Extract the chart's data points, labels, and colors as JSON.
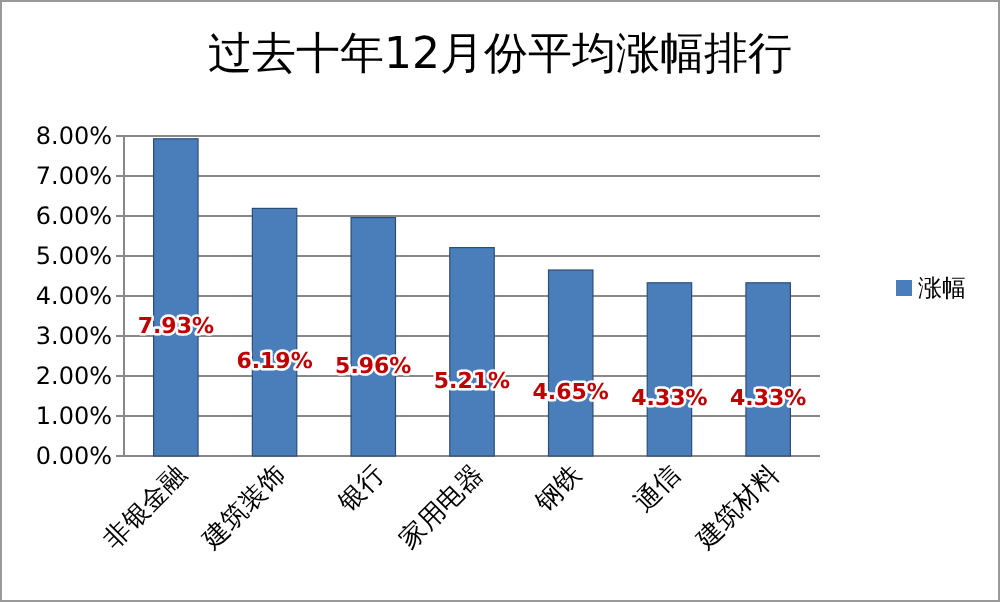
{
  "chart_data": {
    "type": "bar",
    "title": "过去十年12月份平均涨幅排行",
    "categories": [
      "非银金融",
      "建筑装饰",
      "银行",
      "家用电器",
      "钢铁",
      "通信",
      "建筑材料"
    ],
    "series": [
      {
        "name": "涨幅",
        "color": "#4a7ebb",
        "values": [
          7.93,
          6.19,
          5.96,
          5.21,
          4.65,
          4.33,
          4.33
        ],
        "value_labels": [
          "7.93%",
          "6.19%",
          "5.96%",
          "5.21%",
          "4.65%",
          "4.33%",
          "4.33%"
        ]
      }
    ],
    "ylim": [
      0,
      8
    ],
    "yticks": [
      {
        "value": 0,
        "label": "0.00%"
      },
      {
        "value": 1,
        "label": "1.00%"
      },
      {
        "value": 2,
        "label": "2.00%"
      },
      {
        "value": 3,
        "label": "3.00%"
      },
      {
        "value": 4,
        "label": "4.00%"
      },
      {
        "value": 5,
        "label": "5.00%"
      },
      {
        "value": 6,
        "label": "6.00%"
      },
      {
        "value": 7,
        "label": "7.00%"
      },
      {
        "value": 8,
        "label": "8.00%"
      }
    ],
    "grid": "y",
    "legend": "right"
  }
}
